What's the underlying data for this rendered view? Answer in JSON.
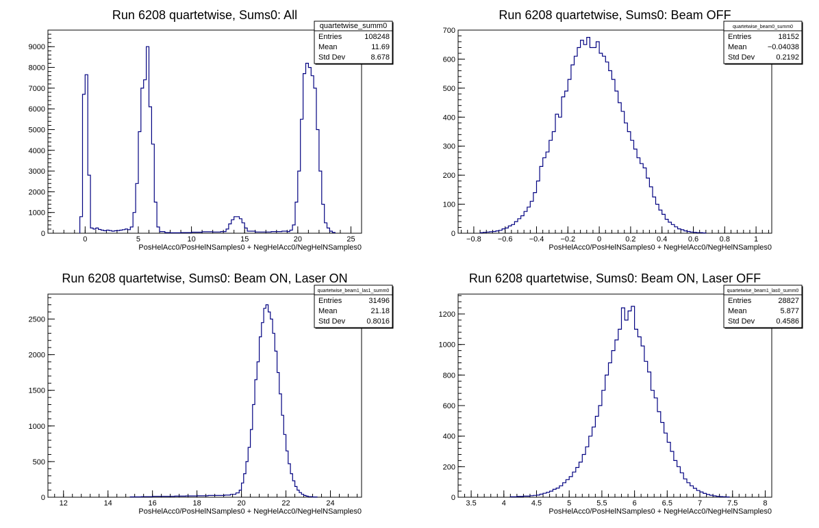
{
  "colors": {
    "histogram_line": "#000080",
    "frame": "#000000",
    "background": "#ffffff"
  },
  "chart_data": [
    {
      "type": "histogram",
      "title": "Run 6208 quartetwise, Sums0: All",
      "xlabel": "PosHelAcc0/PosHelNSamples0 + NegHelAcc0/NegHelNSamples0",
      "ylabel": "",
      "xlim": [
        -3.5,
        26.0
      ],
      "ylim": [
        0,
        9800
      ],
      "xticks": [
        0,
        5,
        10,
        15,
        20,
        25
      ],
      "yticks": [
        0,
        1000,
        2000,
        3000,
        4000,
        5000,
        6000,
        7000,
        8000,
        9000
      ],
      "stats": {
        "name": "quartetwise_summ0",
        "rows": [
          [
            "Entries",
            "108248"
          ],
          [
            "Mean",
            "11.69"
          ],
          [
            "Std Dev",
            "8.678"
          ]
        ]
      },
      "bins": [
        [
          -0.5,
          800
        ],
        [
          -0.25,
          6700
        ],
        [
          0.0,
          7650
        ],
        [
          0.25,
          2800
        ],
        [
          0.5,
          250
        ],
        [
          0.75,
          200
        ],
        [
          1.0,
          250
        ],
        [
          1.25,
          180
        ],
        [
          1.5,
          150
        ],
        [
          1.75,
          120
        ],
        [
          2.0,
          150
        ],
        [
          2.25,
          130
        ],
        [
          2.5,
          100
        ],
        [
          2.75,
          120
        ],
        [
          3.0,
          130
        ],
        [
          3.25,
          150
        ],
        [
          3.5,
          170
        ],
        [
          3.75,
          200
        ],
        [
          4.0,
          170
        ],
        [
          4.25,
          300
        ],
        [
          4.5,
          1000
        ],
        [
          4.75,
          2400
        ],
        [
          5.0,
          4900
        ],
        [
          5.25,
          7000
        ],
        [
          5.5,
          7400
        ],
        [
          5.75,
          9000
        ],
        [
          6.0,
          6100
        ],
        [
          6.25,
          4300
        ],
        [
          6.5,
          1500
        ],
        [
          6.75,
          300
        ],
        [
          7.0,
          80
        ],
        [
          7.5,
          30
        ],
        [
          8.0,
          20
        ],
        [
          9.0,
          30
        ],
        [
          10.0,
          50
        ],
        [
          11.0,
          70
        ],
        [
          12.0,
          60
        ],
        [
          12.75,
          80
        ],
        [
          13.25,
          200
        ],
        [
          13.5,
          450
        ],
        [
          13.75,
          650
        ],
        [
          14.0,
          800
        ],
        [
          14.25,
          800
        ],
        [
          14.5,
          700
        ],
        [
          14.75,
          500
        ],
        [
          15.0,
          250
        ],
        [
          15.25,
          100
        ],
        [
          16.0,
          60
        ],
        [
          17.5,
          80
        ],
        [
          18.5,
          100
        ],
        [
          19.0,
          80
        ],
        [
          19.25,
          150
        ],
        [
          19.5,
          400
        ],
        [
          19.75,
          1500
        ],
        [
          20.0,
          3000
        ],
        [
          20.25,
          5500
        ],
        [
          20.5,
          7700
        ],
        [
          20.75,
          8200
        ],
        [
          21.0,
          8000
        ],
        [
          21.25,
          7600
        ],
        [
          21.5,
          7000
        ],
        [
          21.75,
          5000
        ],
        [
          22.0,
          3000
        ],
        [
          22.25,
          1400
        ],
        [
          22.5,
          500
        ],
        [
          22.75,
          250
        ],
        [
          23.0,
          100
        ],
        [
          23.25,
          40
        ]
      ]
    },
    {
      "type": "histogram",
      "title": "Run 6208 quartetwise, Sums0: Beam OFF",
      "xlabel": "PosHelAcc0/PosHelNSamples0 + NegHelAcc0/NegHelNSamples0",
      "ylabel": "",
      "xlim": [
        -0.9,
        1.1
      ],
      "ylim": [
        0,
        700
      ],
      "xticks": [
        -0.8,
        -0.6,
        -0.4,
        -0.2,
        0,
        0.2,
        0.4,
        0.6,
        0.8,
        1
      ],
      "yticks": [
        0,
        100,
        200,
        300,
        400,
        500,
        600,
        700
      ],
      "stats": {
        "name": "quartetwise_beam0_summ0",
        "rows": [
          [
            "Entries",
            "18152"
          ],
          [
            "Mean",
            "−0.04038"
          ],
          [
            "Std Dev",
            "0.2192"
          ]
        ]
      },
      "bins": [
        [
          -0.76,
          2
        ],
        [
          -0.74,
          3
        ],
        [
          -0.72,
          4
        ],
        [
          -0.7,
          5
        ],
        [
          -0.68,
          6
        ],
        [
          -0.66,
          8
        ],
        [
          -0.64,
          10
        ],
        [
          -0.62,
          15
        ],
        [
          -0.6,
          18
        ],
        [
          -0.58,
          25
        ],
        [
          -0.56,
          30
        ],
        [
          -0.54,
          40
        ],
        [
          -0.52,
          50
        ],
        [
          -0.5,
          60
        ],
        [
          -0.48,
          75
        ],
        [
          -0.46,
          90
        ],
        [
          -0.44,
          110
        ],
        [
          -0.42,
          140
        ],
        [
          -0.4,
          180
        ],
        [
          -0.38,
          230
        ],
        [
          -0.36,
          260
        ],
        [
          -0.34,
          280
        ],
        [
          -0.32,
          320
        ],
        [
          -0.3,
          350
        ],
        [
          -0.28,
          410
        ],
        [
          -0.26,
          400
        ],
        [
          -0.24,
          470
        ],
        [
          -0.22,
          490
        ],
        [
          -0.2,
          530
        ],
        [
          -0.18,
          580
        ],
        [
          -0.16,
          610
        ],
        [
          -0.14,
          640
        ],
        [
          -0.12,
          665
        ],
        [
          -0.1,
          650
        ],
        [
          -0.08,
          675
        ],
        [
          -0.06,
          640
        ],
        [
          -0.04,
          640
        ],
        [
          -0.02,
          660
        ],
        [
          0.0,
          620
        ],
        [
          0.02,
          610
        ],
        [
          0.04,
          590
        ],
        [
          0.06,
          560
        ],
        [
          0.08,
          530
        ],
        [
          0.1,
          490
        ],
        [
          0.12,
          450
        ],
        [
          0.14,
          420
        ],
        [
          0.16,
          380
        ],
        [
          0.18,
          350
        ],
        [
          0.2,
          320
        ],
        [
          0.22,
          290
        ],
        [
          0.24,
          260
        ],
        [
          0.26,
          240
        ],
        [
          0.28,
          225
        ],
        [
          0.3,
          190
        ],
        [
          0.32,
          160
        ],
        [
          0.34,
          125
        ],
        [
          0.36,
          100
        ],
        [
          0.38,
          80
        ],
        [
          0.4,
          65
        ],
        [
          0.42,
          48
        ],
        [
          0.44,
          38
        ],
        [
          0.46,
          30
        ],
        [
          0.48,
          22
        ],
        [
          0.5,
          15
        ],
        [
          0.52,
          12
        ],
        [
          0.54,
          8
        ],
        [
          0.56,
          6
        ],
        [
          0.58,
          4
        ],
        [
          0.6,
          3
        ],
        [
          0.62,
          2
        ],
        [
          0.64,
          2
        ],
        [
          0.66,
          1
        ]
      ]
    },
    {
      "type": "histogram",
      "title": "Run 6208 quartetwise, Sums0: Beam ON, Laser ON",
      "xlabel": "PosHelAcc0/PosHelNSamples0 + NegHelAcc0/NegHelNSamples0",
      "ylabel": "",
      "xlim": [
        11.3,
        25.4
      ],
      "ylim": [
        0,
        2850
      ],
      "xticks": [
        12,
        14,
        16,
        18,
        20,
        22,
        24
      ],
      "yticks": [
        0,
        500,
        1000,
        1500,
        2000,
        2500
      ],
      "stats": {
        "name": "quartetwise_beam1_las1_summ0",
        "rows": [
          [
            "Entries",
            "31496"
          ],
          [
            "Mean",
            "21.18"
          ],
          [
            "Std Dev",
            "0.8016"
          ]
        ]
      },
      "bins": [
        [
          15.0,
          5
        ],
        [
          15.5,
          8
        ],
        [
          16.0,
          12
        ],
        [
          16.5,
          12
        ],
        [
          17.0,
          15
        ],
        [
          17.5,
          18
        ],
        [
          18.0,
          20
        ],
        [
          18.5,
          25
        ],
        [
          19.0,
          25
        ],
        [
          19.25,
          30
        ],
        [
          19.5,
          40
        ],
        [
          19.75,
          60
        ],
        [
          19.9,
          100
        ],
        [
          20.0,
          200
        ],
        [
          20.1,
          330
        ],
        [
          20.2,
          500
        ],
        [
          20.3,
          700
        ],
        [
          20.4,
          950
        ],
        [
          20.5,
          1300
        ],
        [
          20.6,
          1650
        ],
        [
          20.7,
          1900
        ],
        [
          20.8,
          2250
        ],
        [
          20.9,
          2450
        ],
        [
          21.0,
          2650
        ],
        [
          21.1,
          2700
        ],
        [
          21.2,
          2600
        ],
        [
          21.3,
          2500
        ],
        [
          21.4,
          2300
        ],
        [
          21.5,
          2050
        ],
        [
          21.6,
          1750
        ],
        [
          21.7,
          1450
        ],
        [
          21.8,
          1150
        ],
        [
          21.9,
          880
        ],
        [
          22.0,
          650
        ],
        [
          22.1,
          470
        ],
        [
          22.2,
          330
        ],
        [
          22.3,
          230
        ],
        [
          22.4,
          150
        ],
        [
          22.5,
          100
        ],
        [
          22.6,
          65
        ],
        [
          22.7,
          40
        ],
        [
          22.8,
          25
        ],
        [
          22.9,
          15
        ],
        [
          23.0,
          8
        ],
        [
          23.2,
          4
        ]
      ]
    },
    {
      "type": "histogram",
      "title": "Run 6208 quartetwise, Sums0: Beam ON, Laser OFF",
      "xlabel": "PosHelAcc0/PosHelNSamples0 + NegHelAcc0/NegHelNSamples0",
      "ylabel": "",
      "xlim": [
        3.3,
        8.1
      ],
      "ylim": [
        0,
        1330
      ],
      "xticks": [
        3.5,
        4,
        4.5,
        5,
        5.5,
        6,
        6.5,
        7,
        7.5,
        8
      ],
      "yticks": [
        0,
        200,
        400,
        600,
        800,
        1000,
        1200
      ],
      "stats": {
        "name": "quartetwise_beam1_las0_summ0",
        "rows": [
          [
            "Entries",
            "28827"
          ],
          [
            "Mean",
            "5.877"
          ],
          [
            "Std Dev",
            "0.4586"
          ]
        ]
      },
      "bins": [
        [
          4.1,
          3
        ],
        [
          4.2,
          5
        ],
        [
          4.3,
          7
        ],
        [
          4.4,
          10
        ],
        [
          4.45,
          12
        ],
        [
          4.5,
          14
        ],
        [
          4.55,
          20
        ],
        [
          4.6,
          26
        ],
        [
          4.65,
          32
        ],
        [
          4.7,
          40
        ],
        [
          4.75,
          52
        ],
        [
          4.8,
          60
        ],
        [
          4.85,
          75
        ],
        [
          4.9,
          95
        ],
        [
          4.95,
          115
        ],
        [
          5.0,
          135
        ],
        [
          5.05,
          165
        ],
        [
          5.1,
          195
        ],
        [
          5.15,
          230
        ],
        [
          5.2,
          280
        ],
        [
          5.25,
          330
        ],
        [
          5.3,
          400
        ],
        [
          5.35,
          460
        ],
        [
          5.4,
          530
        ],
        [
          5.45,
          600
        ],
        [
          5.5,
          700
        ],
        [
          5.55,
          800
        ],
        [
          5.6,
          880
        ],
        [
          5.65,
          960
        ],
        [
          5.7,
          1030
        ],
        [
          5.75,
          1100
        ],
        [
          5.8,
          1240
        ],
        [
          5.85,
          1160
        ],
        [
          5.9,
          1220
        ],
        [
          5.95,
          1250
        ],
        [
          6.0,
          1100
        ],
        [
          6.05,
          1050
        ],
        [
          6.1,
          990
        ],
        [
          6.15,
          890
        ],
        [
          6.2,
          820
        ],
        [
          6.25,
          700
        ],
        [
          6.3,
          650
        ],
        [
          6.35,
          560
        ],
        [
          6.4,
          490
        ],
        [
          6.45,
          420
        ],
        [
          6.5,
          360
        ],
        [
          6.55,
          300
        ],
        [
          6.6,
          240
        ],
        [
          6.65,
          200
        ],
        [
          6.7,
          160
        ],
        [
          6.75,
          120
        ],
        [
          6.8,
          95
        ],
        [
          6.85,
          75
        ],
        [
          6.9,
          58
        ],
        [
          6.95,
          44
        ],
        [
          7.0,
          34
        ],
        [
          7.05,
          25
        ],
        [
          7.1,
          18
        ],
        [
          7.15,
          13
        ],
        [
          7.2,
          9
        ],
        [
          7.25,
          6
        ],
        [
          7.3,
          4
        ],
        [
          7.35,
          3
        ],
        [
          7.4,
          2
        ]
      ]
    }
  ]
}
